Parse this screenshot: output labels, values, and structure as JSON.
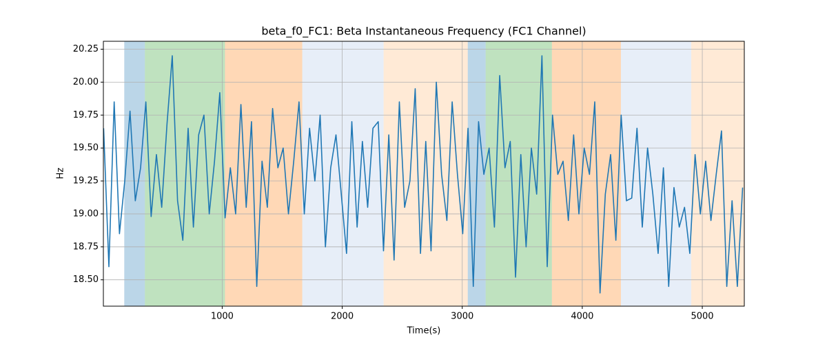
{
  "chart_data": {
    "type": "line",
    "title": "beta_f0_FC1: Beta Instantaneous Frequency (FC1 Channel)",
    "xlabel": "Time(s)",
    "ylabel": "Hz",
    "x": [
      12,
      56,
      100,
      144,
      188,
      232,
      276,
      320,
      364,
      408,
      452,
      496,
      540,
      584,
      628,
      672,
      716,
      760,
      804,
      848,
      892,
      936,
      980,
      1024,
      1068,
      1112,
      1156,
      1200,
      1244,
      1288,
      1332,
      1376,
      1420,
      1464,
      1508,
      1552,
      1596,
      1640,
      1684,
      1728,
      1772,
      1816,
      1860,
      1904,
      1948,
      1992,
      2036,
      2080,
      2124,
      2168,
      2212,
      2256,
      2300,
      2344,
      2388,
      2432,
      2476,
      2520,
      2564,
      2608,
      2652,
      2696,
      2740,
      2784,
      2828,
      2872,
      2916,
      2960,
      3004,
      3048,
      3092,
      3136,
      3180,
      3224,
      3268,
      3312,
      3356,
      3400,
      3444,
      3488,
      3532,
      3576,
      3620,
      3664,
      3708,
      3752,
      3796,
      3840,
      3884,
      3928,
      3972,
      4016,
      4060,
      4104,
      4148,
      4192,
      4236,
      4280,
      4324,
      4368,
      4412,
      4456,
      4500,
      4544,
      4588,
      4632,
      4676,
      4720,
      4764,
      4808,
      4852,
      4896,
      4940,
      4984,
      5028,
      5072,
      5116,
      5160,
      5204,
      5248,
      5292,
      5336
    ],
    "values": [
      19.65,
      18.6,
      19.85,
      18.85,
      19.25,
      19.78,
      19.1,
      19.35,
      19.85,
      18.98,
      19.45,
      19.05,
      19.68,
      20.2,
      19.1,
      18.8,
      19.65,
      18.9,
      19.6,
      19.75,
      19.0,
      19.4,
      19.92,
      18.97,
      19.35,
      19.0,
      19.83,
      19.05,
      19.7,
      18.45,
      19.4,
      19.05,
      19.8,
      19.35,
      19.5,
      19.0,
      19.4,
      19.85,
      19.0,
      19.65,
      19.25,
      19.75,
      18.75,
      19.35,
      19.6,
      19.15,
      18.7,
      19.7,
      18.9,
      19.55,
      19.05,
      19.65,
      19.7,
      18.72,
      19.6,
      18.65,
      19.85,
      19.05,
      19.25,
      19.95,
      18.7,
      19.55,
      18.72,
      20.0,
      19.3,
      18.95,
      19.85,
      19.3,
      18.85,
      19.65,
      18.45,
      19.7,
      19.3,
      19.5,
      18.9,
      20.05,
      19.35,
      19.55,
      18.52,
      19.45,
      18.75,
      19.5,
      19.15,
      20.2,
      18.6,
      19.75,
      19.3,
      19.4,
      18.95,
      19.6,
      19.0,
      19.5,
      19.3,
      19.85,
      18.4,
      19.15,
      19.45,
      18.8,
      19.75,
      19.1,
      19.12,
      19.65,
      18.9,
      19.5,
      19.15,
      18.7,
      19.35,
      18.45,
      19.2,
      18.9,
      19.05,
      18.7,
      19.45,
      19.0,
      19.4,
      18.95,
      19.3,
      19.63,
      18.45,
      19.1,
      18.45,
      19.2
    ],
    "color": "#1f77b4",
    "spans": [
      {
        "start": 184,
        "end": 356,
        "color": "#1f77b4"
      },
      {
        "start": 356,
        "end": 1023,
        "color": "#2ca02c"
      },
      {
        "start": 1023,
        "end": 1667,
        "color": "#ff7f0e"
      },
      {
        "start": 1667,
        "end": 2345,
        "color": "#aec7e8"
      },
      {
        "start": 2345,
        "end": 3046,
        "color": "#ffbb78"
      },
      {
        "start": 3046,
        "end": 3195,
        "color": "#1f77b4"
      },
      {
        "start": 3195,
        "end": 3747,
        "color": "#2ca02c"
      },
      {
        "start": 3747,
        "end": 4322,
        "color": "#ff7f0e"
      },
      {
        "start": 4322,
        "end": 4908,
        "color": "#aec7e8"
      },
      {
        "start": 4908,
        "end": 5350,
        "color": "#ffbb78"
      }
    ],
    "xlim": [
      10,
      5350
    ],
    "ylim": [
      18.3,
      20.31
    ],
    "xticks": [
      1000,
      2000,
      3000,
      4000,
      5000
    ],
    "yticks": [
      {
        "value": 18.5,
        "label": "18.50"
      },
      {
        "value": 18.75,
        "label": "18.75"
      },
      {
        "value": 19.0,
        "label": "19.00"
      },
      {
        "value": 19.25,
        "label": "19.25"
      },
      {
        "value": 19.5,
        "label": "19.50"
      },
      {
        "value": 19.75,
        "label": "19.75"
      },
      {
        "value": 20.0,
        "label": "20.00"
      },
      {
        "value": 20.25,
        "label": "20.25"
      }
    ],
    "grid": true
  }
}
